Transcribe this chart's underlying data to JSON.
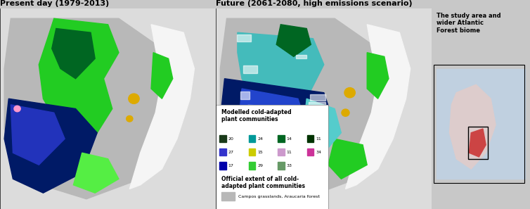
{
  "title_left": "Present day (1979-2013)",
  "title_right": "Future (2061-2080, high emissions scenario)",
  "inset_title": "The study area and\nwider Atlantic\nForest biome",
  "legend_title1": "Modelled cold-adapted\nplant communities",
  "legend_title2": "Official extent of all cold-\nadapted plant communities",
  "legend_subtitle": "Campos grasslands, Araucaria forest",
  "legend_items": [
    {
      "label": "20",
      "color": "#1a3a1a"
    },
    {
      "label": "24",
      "color": "#009999"
    },
    {
      "label": "14",
      "color": "#006600"
    },
    {
      "label": "11",
      "color": "#003300"
    },
    {
      "label": "27",
      "color": "#3333cc"
    },
    {
      "label": "15",
      "color": "#cccc00"
    },
    {
      "label": "11",
      "color": "#cc99cc"
    },
    {
      "label": "34",
      "color": "#cc3399"
    },
    {
      "label": "17",
      "color": "#0000aa"
    },
    {
      "label": "29",
      "color": "#33cc33"
    },
    {
      "label": "33",
      "color": "#669966"
    }
  ],
  "bg_color": "#c8c8c8",
  "map_bg": "#d0d0d0",
  "title_fontsize": 8,
  "legend_fontsize": 6
}
